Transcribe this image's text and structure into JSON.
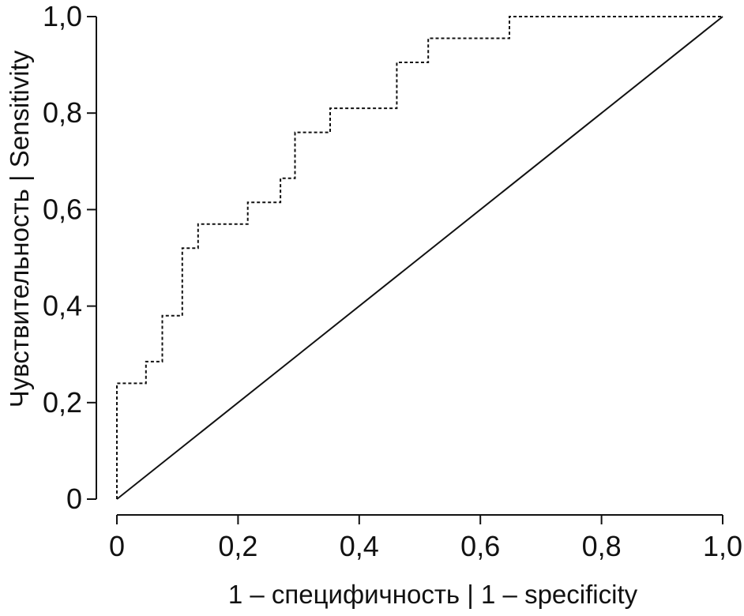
{
  "chart_data": {
    "type": "line",
    "title": "",
    "xlabel": "1 – специфичность | 1 – specificity",
    "ylabel": "Чувствительность | Sensitivity",
    "xlim": [
      0,
      1
    ],
    "ylim": [
      0,
      1
    ],
    "x_ticks": [
      "0",
      "0,2",
      "0,4",
      "0,6",
      "0,8",
      "1,0"
    ],
    "y_ticks": [
      "0",
      "0,2",
      "0,4",
      "0,6",
      "0,8",
      "1,0"
    ],
    "x_tick_values": [
      0,
      0.2,
      0.4,
      0.6,
      0.8,
      1.0
    ],
    "y_tick_values": [
      0,
      0.2,
      0.4,
      0.6,
      0.8,
      1.0
    ],
    "grid": false,
    "legend": "none",
    "series": [
      {
        "style": "dashed",
        "step": true,
        "x": [
          0,
          0,
          0.048,
          0.048,
          0.075,
          0.075,
          0.108,
          0.108,
          0.134,
          0.134,
          0.216,
          0.216,
          0.27,
          0.27,
          0.294,
          0.294,
          0.352,
          0.352,
          0.462,
          0.462,
          0.514,
          0.514,
          0.648,
          0.648,
          1.0
        ],
        "y": [
          0,
          0.24,
          0.24,
          0.285,
          0.285,
          0.38,
          0.38,
          0.52,
          0.52,
          0.57,
          0.57,
          0.615,
          0.615,
          0.665,
          0.665,
          0.76,
          0.76,
          0.81,
          0.81,
          0.905,
          0.905,
          0.955,
          0.955,
          1.0,
          1.0
        ]
      },
      {
        "style": "solid",
        "step": false,
        "x": [
          0,
          1
        ],
        "y": [
          0,
          1
        ]
      }
    ],
    "colors": {
      "axis": "#111111",
      "roc_curve": "#111111",
      "reference_line": "#111111"
    }
  }
}
